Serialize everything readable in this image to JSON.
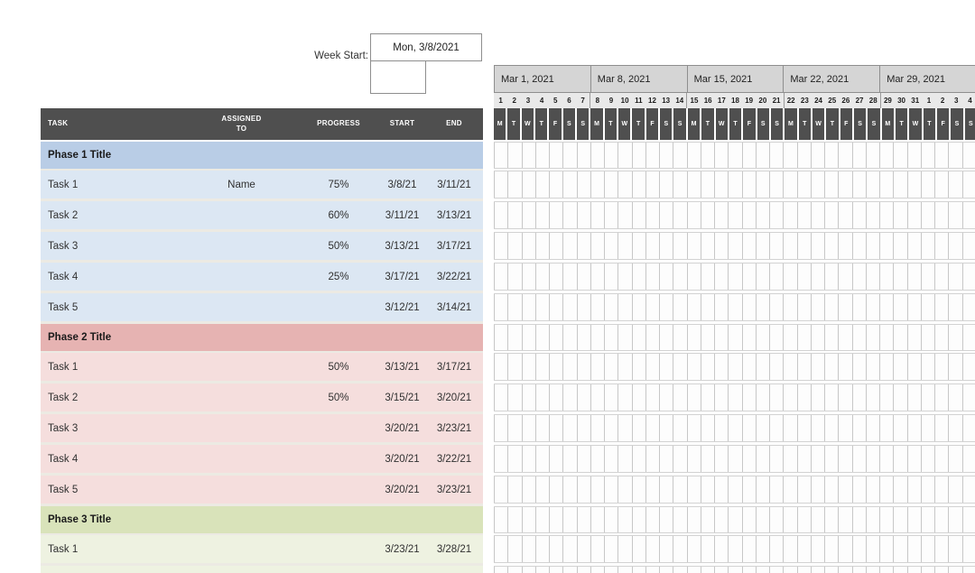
{
  "week_start": {
    "label": "Week Start:",
    "value": "Mon, 3/8/2021"
  },
  "table": {
    "headers": {
      "task": "TASK",
      "assigned_to": "ASSIGNED TO",
      "progress": "PROGRESS",
      "start": "START",
      "end": "END"
    },
    "phases": [
      {
        "title": "Phase 1 Title",
        "band_color": "#b9cde6",
        "row_color": "#dce7f3",
        "tasks": [
          {
            "name": "Task 1",
            "assigned_to": "Name",
            "progress": "75%",
            "start": "3/8/21",
            "end": "3/11/21"
          },
          {
            "name": "Task 2",
            "assigned_to": "",
            "progress": "60%",
            "start": "3/11/21",
            "end": "3/13/21"
          },
          {
            "name": "Task 3",
            "assigned_to": "",
            "progress": "50%",
            "start": "3/13/21",
            "end": "3/17/21"
          },
          {
            "name": "Task 4",
            "assigned_to": "",
            "progress": "25%",
            "start": "3/17/21",
            "end": "3/22/21"
          },
          {
            "name": "Task 5",
            "assigned_to": "",
            "progress": "",
            "start": "3/12/21",
            "end": "3/14/21"
          }
        ]
      },
      {
        "title": "Phase 2 Title",
        "band_color": "#e6b3b2",
        "row_color": "#f5dedd",
        "tasks": [
          {
            "name": "Task 1",
            "assigned_to": "",
            "progress": "50%",
            "start": "3/13/21",
            "end": "3/17/21"
          },
          {
            "name": "Task 2",
            "assigned_to": "",
            "progress": "50%",
            "start": "3/15/21",
            "end": "3/20/21"
          },
          {
            "name": "Task 3",
            "assigned_to": "",
            "progress": "",
            "start": "3/20/21",
            "end": "3/23/21"
          },
          {
            "name": "Task 4",
            "assigned_to": "",
            "progress": "",
            "start": "3/20/21",
            "end": "3/22/21"
          },
          {
            "name": "Task 5",
            "assigned_to": "",
            "progress": "",
            "start": "3/20/21",
            "end": "3/23/21"
          }
        ]
      },
      {
        "title": "Phase 3 Title",
        "band_color": "#d9e3ba",
        "row_color": "#eef2e1",
        "partial_next_row": true,
        "tasks": [
          {
            "name": "Task 1",
            "assigned_to": "",
            "progress": "",
            "start": "3/23/21",
            "end": "3/28/21"
          }
        ]
      }
    ]
  },
  "timeline": {
    "weeks": [
      {
        "label": "Mar 1, 2021",
        "days": [
          "1",
          "2",
          "3",
          "4",
          "5",
          "6",
          "7"
        ]
      },
      {
        "label": "Mar 8, 2021",
        "days": [
          "8",
          "9",
          "10",
          "11",
          "12",
          "13",
          "14"
        ]
      },
      {
        "label": "Mar 15, 2021",
        "days": [
          "15",
          "16",
          "17",
          "18",
          "19",
          "20",
          "21"
        ]
      },
      {
        "label": "Mar 22, 2021",
        "days": [
          "22",
          "23",
          "24",
          "25",
          "26",
          "27",
          "28"
        ]
      },
      {
        "label": "Mar 29, 2021",
        "days": [
          "29",
          "30",
          "31",
          "1",
          "2",
          "3",
          "4"
        ]
      }
    ],
    "day_letters": [
      "M",
      "T",
      "W",
      "T",
      "F",
      "S",
      "S"
    ]
  },
  "colors": {
    "header_bar": "#4f4f4f",
    "week_box": "#d5d5d5",
    "number_row": "#e9e9e9",
    "grid_line": "#c7c7c7",
    "row_gap": "#eceae3"
  }
}
